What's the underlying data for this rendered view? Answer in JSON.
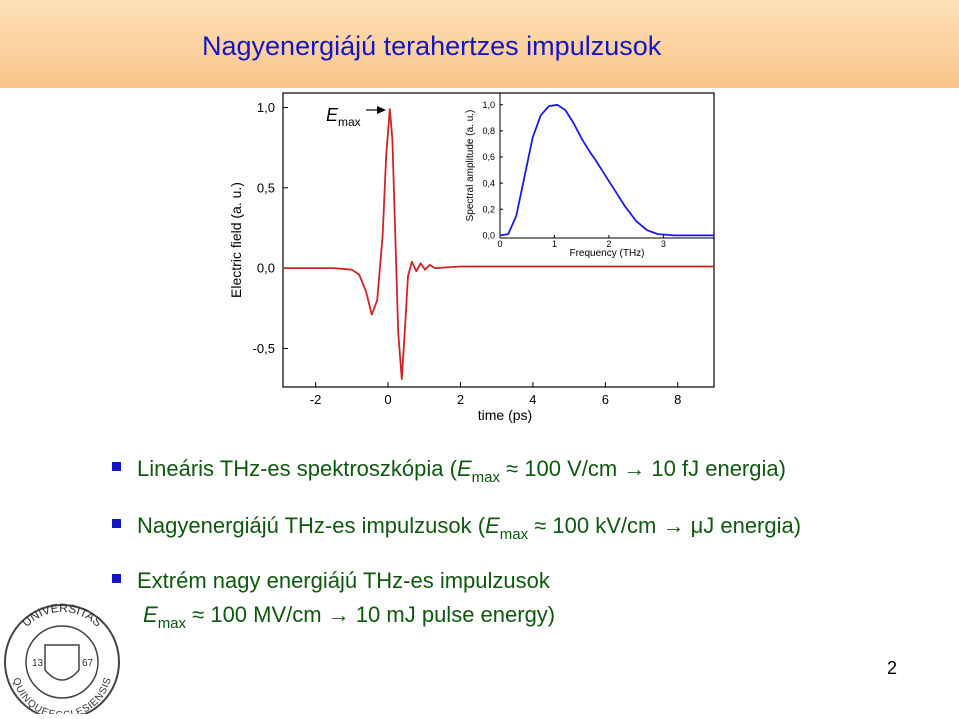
{
  "header": {
    "title": "Nagyenergiájú terahertzes impulzusok"
  },
  "chart_data": [
    {
      "type": "line",
      "x_label": "time (ps)",
      "y_label": "Electric field (a. u.)",
      "annotation": {
        "symbol": "E",
        "subscript": "max"
      },
      "x": [
        -2.9,
        -1.5,
        -1.0,
        -0.8,
        -0.6,
        -0.45,
        -0.3,
        -0.15,
        -0.05,
        0.05,
        0.12,
        0.2,
        0.28,
        0.38,
        0.46,
        0.55,
        0.66,
        0.78,
        0.9,
        1.02,
        1.15,
        1.3,
        2,
        4,
        6,
        8,
        9
      ],
      "series": [
        {
          "color": "#d42222",
          "values": [
            0,
            0,
            -0.01,
            -0.04,
            -0.15,
            -0.29,
            -0.2,
            0.2,
            0.7,
            0.99,
            0.8,
            0.2,
            -0.4,
            -0.69,
            -0.4,
            -0.05,
            0.04,
            -0.02,
            0.03,
            -0.01,
            0.02,
            0,
            0.01,
            0.01,
            0.01,
            0.01,
            0.01
          ]
        }
      ],
      "xlim": [
        -2.9,
        9.0
      ],
      "ylim": [
        -0.74,
        1.09
      ],
      "xticks": [
        -2,
        0,
        2,
        4,
        6,
        8
      ],
      "yticks": [
        {
          "value": -0.5,
          "label": "-0,5"
        },
        {
          "value": 0,
          "label": "0,0"
        },
        {
          "value": 0.5,
          "label": "0,5"
        },
        {
          "value": 1,
          "label": "1,0"
        }
      ]
    },
    {
      "type": "line",
      "x_label": "Frequency (THz)",
      "y_label": "Spectral amplitude (a. u.)",
      "x": [
        0,
        0.15,
        0.3,
        0.45,
        0.6,
        0.75,
        0.9,
        1.05,
        1.2,
        1.35,
        1.5,
        1.65,
        1.75,
        1.9,
        2.1,
        2.3,
        2.5,
        2.7,
        2.9,
        3.2,
        3.93
      ],
      "series": [
        {
          "color": "#1a1aee",
          "values": [
            0,
            0.01,
            0.15,
            0.45,
            0.75,
            0.92,
            0.99,
            1.0,
            0.96,
            0.86,
            0.74,
            0.64,
            0.58,
            0.48,
            0.35,
            0.22,
            0.11,
            0.04,
            0.01,
            0,
            0
          ]
        }
      ],
      "xlim": [
        0,
        3.93
      ],
      "ylim": [
        -0.02,
        1.09
      ],
      "xticks": [
        0,
        1,
        2,
        3
      ],
      "yticks": [
        {
          "value": 0,
          "label": "0,0"
        },
        {
          "value": 0.2,
          "label": "0,2"
        },
        {
          "value": 0.4,
          "label": "0,4"
        },
        {
          "value": 0.6,
          "label": "0,6"
        },
        {
          "value": 0.8,
          "label": "0,8"
        },
        {
          "value": 1,
          "label": "1,0"
        }
      ]
    }
  ],
  "bullets": [
    {
      "before": "Lineáris THz-es spektroszkópia (",
      "symbol": "E",
      "subscript": "max",
      "after": " ≈ 100 V/cm → 10 fJ energia)"
    },
    {
      "before": "Nagyenergiájú THz-es impulzusok (",
      "symbol": "E",
      "subscript": "max",
      "after": " ≈ 100 kV/cm → μJ energia)"
    },
    {
      "before": "Extrém nagy energiájú THz-es impulzusok",
      "symbol": "E",
      "subscript": "max",
      "after": " ≈ 100 MV/cm → 10 mJ pulse energy)"
    }
  ],
  "logo": {
    "top": "UNIVERSITAS",
    "bottom": "QUINQUEECCLESIENSIS",
    "left_year": "13",
    "right_year": "67"
  },
  "page_number": "2"
}
